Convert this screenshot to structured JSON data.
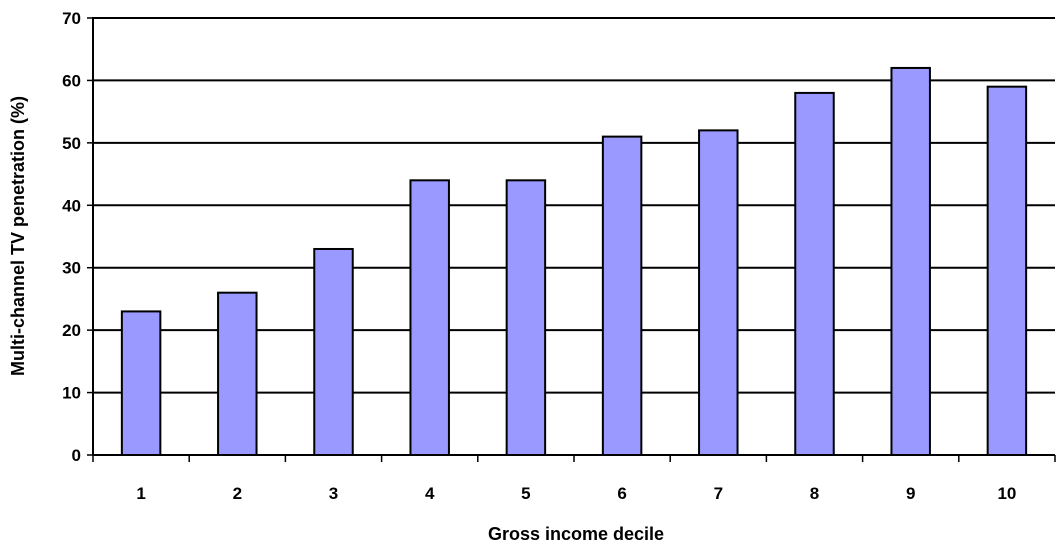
{
  "chart_data": {
    "type": "bar",
    "title": "",
    "xlabel": "Gross income decile",
    "ylabel": "Multi-channel TV penetration (%)",
    "categories": [
      "1",
      "2",
      "3",
      "4",
      "5",
      "6",
      "7",
      "8",
      "9",
      "10"
    ],
    "values": [
      23,
      26,
      33,
      44,
      44,
      51,
      52,
      58,
      62,
      59
    ],
    "ylim": [
      0,
      70
    ],
    "yticks": [
      "0",
      "10",
      "20",
      "30",
      "40",
      "50",
      "60",
      "70"
    ],
    "grid": true,
    "legend": "none",
    "colors": {
      "bar_fill": "#9999ff",
      "bar_stroke": "#000000",
      "grid": "#000000"
    }
  }
}
